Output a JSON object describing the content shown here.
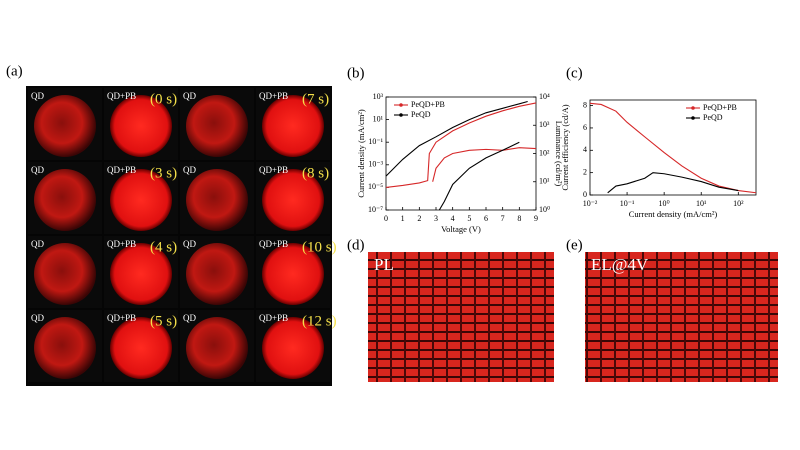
{
  "panel_a": {
    "label": "(a)",
    "rows": [
      {
        "cells": [
          "QD",
          "QD+PB",
          "QD",
          "QD+PB"
        ],
        "times": [
          "(0 s)",
          "(7 s)"
        ]
      },
      {
        "cells": [
          "QD",
          "QD+PB",
          "QD",
          "QD+PB"
        ],
        "times": [
          "(3 s)",
          "(8 s)"
        ]
      },
      {
        "cells": [
          "QD",
          "QD+PB",
          "QD",
          "QD+PB"
        ],
        "times": [
          "(4 s)",
          "(10 s)"
        ]
      },
      {
        "cells": [
          "QD",
          "QD+PB",
          "QD",
          "QD+PB"
        ],
        "times": [
          "(5 s)",
          "(12 s)"
        ]
      }
    ]
  },
  "panel_d": {
    "label": "(d)",
    "text": "PL"
  },
  "panel_e": {
    "label": "(e)",
    "text": "EL@4V"
  },
  "chart_data": [
    {
      "type": "line",
      "panel": "(b)",
      "x_label": "Voltage (V)",
      "y_label": "Current density (mA/cm²)",
      "y2_label": "Luminance (cd/m²)",
      "xlim": [
        0,
        9
      ],
      "xticks": [
        0,
        1,
        2,
        3,
        4,
        5,
        6,
        7,
        8,
        9
      ],
      "ylog": true,
      "ylim": [
        1e-07,
        1000
      ],
      "yticks": [
        {
          "value": 1e-07,
          "label": "10⁻⁷"
        },
        {
          "value": 1e-05,
          "label": "10⁻⁵"
        },
        {
          "value": 0.001,
          "label": "10⁻³"
        },
        {
          "value": 0.1,
          "label": "10⁻¹"
        },
        {
          "value": 10,
          "label": "10¹"
        },
        {
          "value": 1000,
          "label": "10³"
        }
      ],
      "y2log": true,
      "y2lim": [
        1,
        10000
      ],
      "y2ticks": [
        {
          "value": 1,
          "label": "10⁰"
        },
        {
          "value": 10,
          "label": "10¹"
        },
        {
          "value": 100,
          "label": "10²"
        },
        {
          "value": 1000,
          "label": "10³"
        },
        {
          "value": 10000,
          "label": "10⁴"
        }
      ],
      "legend": "upper left",
      "series": [
        {
          "name": "PeQD+PB",
          "color": "#d62728",
          "x": [
            0,
            1,
            2,
            2.5,
            2.6,
            3,
            4,
            5,
            6,
            7,
            8,
            9
          ],
          "values": [
            1e-05,
            1.5e-05,
            2.5e-05,
            4e-05,
            0.01,
            0.1,
            1,
            5,
            20,
            60,
            150,
            300
          ]
        },
        {
          "name": "PeQD",
          "color": "#000000",
          "x": [
            0,
            1,
            2,
            3,
            4,
            5,
            6,
            7,
            8,
            8.5
          ],
          "values": [
            0.0001,
            0.003,
            0.05,
            0.3,
            2,
            10,
            40,
            100,
            250,
            400
          ]
        },
        {
          "color": "#d62728",
          "axis": "y2",
          "x": [
            2.8,
            3,
            3.5,
            4,
            5,
            6,
            7,
            8,
            9
          ],
          "values": [
            10,
            30,
            70,
            100,
            130,
            140,
            130,
            160,
            150
          ]
        },
        {
          "color": "#000000",
          "axis": "y2",
          "x": [
            3.2,
            3.5,
            4,
            5,
            6,
            7,
            8
          ],
          "values": [
            1,
            2,
            8,
            30,
            70,
            130,
            250
          ]
        }
      ]
    },
    {
      "type": "line",
      "panel": "(c)",
      "x_label": "Current density (mA/cm²)",
      "y_label": "Current efficiency (cd/A)",
      "xlog": true,
      "xlim": [
        0.01,
        300
      ],
      "xticks": [
        {
          "value": 0.01,
          "label": "10⁻²"
        },
        {
          "value": 0.1,
          "label": "10⁻¹"
        },
        {
          "value": 1,
          "label": "10⁰"
        },
        {
          "value": 10,
          "label": "10¹"
        },
        {
          "value": 100,
          "label": "10²"
        }
      ],
      "ylim": [
        0,
        8.5
      ],
      "yticks": [
        0,
        2,
        4,
        6,
        8
      ],
      "legend": "upper right",
      "series": [
        {
          "name": "PeQD+PB",
          "color": "#d62728",
          "x": [
            0.01,
            0.02,
            0.05,
            0.1,
            0.3,
            1,
            3,
            10,
            30,
            100,
            300
          ],
          "values": [
            8.2,
            8.1,
            7.5,
            6.5,
            5.2,
            3.8,
            2.6,
            1.5,
            0.8,
            0.4,
            0.2
          ]
        },
        {
          "name": "PeQD",
          "color": "#000000",
          "x": [
            0.03,
            0.05,
            0.1,
            0.3,
            0.5,
            1,
            3,
            10,
            30,
            100
          ],
          "values": [
            0.2,
            0.8,
            1.0,
            1.5,
            2.0,
            1.9,
            1.6,
            1.2,
            0.7,
            0.4
          ]
        }
      ]
    }
  ]
}
